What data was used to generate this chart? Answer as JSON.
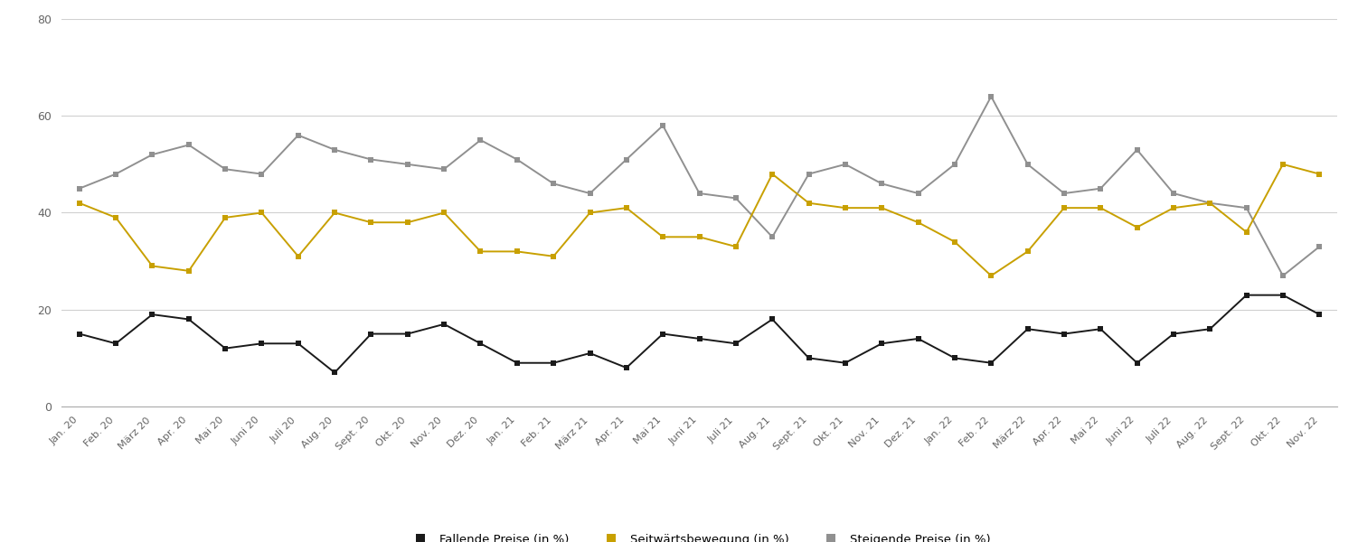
{
  "labels": [
    "Jan. 20",
    "Feb. 20",
    "März 20",
    "Apr. 20",
    "Mai 20",
    "Juni 20",
    "Juli 20",
    "Aug. 20",
    "Sept. 20",
    "Okt. 20",
    "Nov. 20",
    "Dez. 20",
    "Jan. 21",
    "Feb. 21",
    "März 21",
    "Apr. 21",
    "Mai 21",
    "Juni 21",
    "Juli 21",
    "Aug. 21",
    "Sept. 21",
    "Okt. 21",
    "Nov. 21",
    "Dez. 21",
    "Jan. 22",
    "Feb. 22",
    "März 22",
    "Apr. 22",
    "Mai 22",
    "Juni 22",
    "Juli 22",
    "Aug. 22",
    "Sept. 22",
    "Okt. 22",
    "Nov. 22"
  ],
  "fallende": [
    15,
    13,
    19,
    18,
    12,
    13,
    13,
    7,
    15,
    15,
    17,
    13,
    9,
    9,
    11,
    8,
    15,
    14,
    13,
    18,
    10,
    9,
    13,
    14,
    10,
    9,
    16,
    15,
    16,
    9,
    15,
    16,
    23,
    23,
    19
  ],
  "seitwaerts": [
    42,
    39,
    29,
    28,
    39,
    40,
    31,
    40,
    38,
    38,
    40,
    32,
    32,
    31,
    40,
    41,
    35,
    35,
    33,
    48,
    42,
    41,
    41,
    38,
    34,
    27,
    32,
    41,
    41,
    37,
    41,
    42,
    36,
    50,
    48
  ],
  "steigende": [
    45,
    48,
    52,
    54,
    49,
    48,
    56,
    53,
    51,
    50,
    49,
    55,
    51,
    46,
    44,
    51,
    58,
    44,
    43,
    35,
    48,
    50,
    46,
    44,
    50,
    64,
    50,
    44,
    45,
    53,
    44,
    42,
    41,
    27,
    33
  ],
  "fallende_color": "#1a1a1a",
  "seitwaerts_color": "#c8a000",
  "steigende_color": "#909090",
  "legend_fallende": "Fallende Preise (in %)",
  "legend_seitwaerts": "Seitwärtsbewegung (in %)",
  "legend_steigende": "Steigende Preise (in %)",
  "ylim": [
    0,
    80
  ],
  "yticks": [
    0,
    20,
    40,
    60,
    80
  ],
  "background_color": "#ffffff",
  "grid_color": "#d0d0d0"
}
